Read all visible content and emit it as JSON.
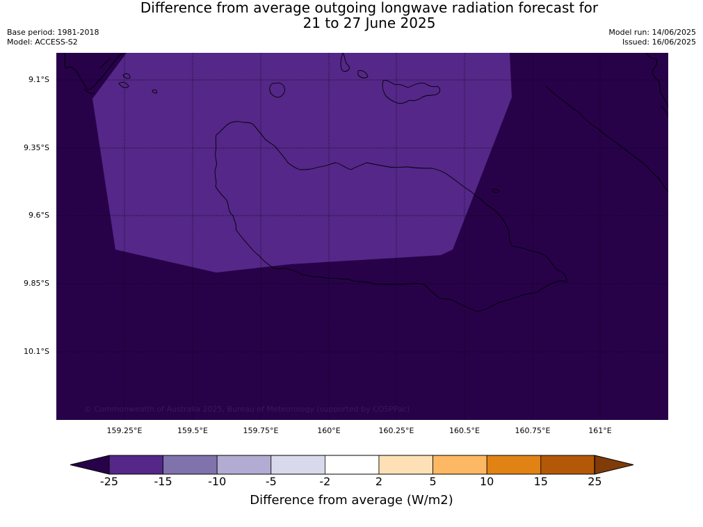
{
  "title": {
    "line1": "Difference from average outgoing longwave radiation forecast for",
    "line2": "21 to 27 June 2025"
  },
  "meta_left": {
    "base_period": "Base period: 1981-2018",
    "model": "Model: ACCESS-S2"
  },
  "meta_right": {
    "model_run": "Model run: 14/06/2025",
    "issued": "Issued: 16/06/2025"
  },
  "map": {
    "lat_labels": [
      "9.1°S",
      "9.35°S",
      "9.6°S",
      "9.85°S",
      "10.1°S"
    ],
    "lon_labels": [
      "159.25°E",
      "159.5°E",
      "159.75°E",
      "160°E",
      "160.25°E",
      "160.5°E",
      "160.75°E",
      "161°E"
    ],
    "copyright": "© Commonwealth of Australia 2025, Bureau of Meteorology (supported by COSPPac)",
    "background_fill": "#270249",
    "anomaly_fill": "#542788"
  },
  "colorbar": {
    "label": "Difference from average (W/m2)",
    "ticks": [
      "-25",
      "-15",
      "-10",
      "-5",
      "-2",
      "2",
      "5",
      "10",
      "15",
      "25"
    ],
    "colors": [
      "#270249",
      "#542788",
      "#8073ac",
      "#b2abd2",
      "#d8daeb",
      "#ffffff",
      "#fee0b6",
      "#fdb863",
      "#e08214",
      "#b35806",
      "#7f3b08"
    ]
  }
}
